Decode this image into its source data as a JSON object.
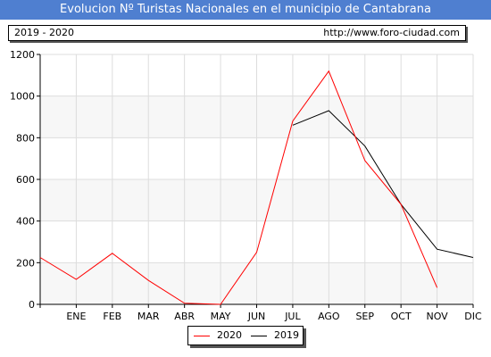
{
  "header": {
    "title": "Evolucion Nº Turistas Nacionales en el municipio de Cantabrana",
    "period": "2019 - 2020",
    "url": "http://www.foro-ciudad.com"
  },
  "chart_data": {
    "type": "line",
    "categories": [
      "",
      "ENE",
      "FEB",
      "MAR",
      "ABR",
      "MAY",
      "JUN",
      "JUL",
      "AGO",
      "SEP",
      "OCT",
      "NOV",
      "DIC"
    ],
    "ylim": [
      0,
      1200
    ],
    "yticks": [
      0,
      200,
      400,
      600,
      800,
      1000,
      1200
    ],
    "grid": true,
    "legend_position": "bottom",
    "series": [
      {
        "name": "2020",
        "color": "#ff0000",
        "values": [
          225,
          120,
          245,
          115,
          5,
          0,
          250,
          880,
          1120,
          690,
          480,
          80,
          null
        ]
      },
      {
        "name": "2019",
        "color": "#000000",
        "values": [
          null,
          null,
          null,
          null,
          null,
          null,
          null,
          860,
          930,
          760,
          480,
          265,
          225
        ]
      }
    ]
  }
}
